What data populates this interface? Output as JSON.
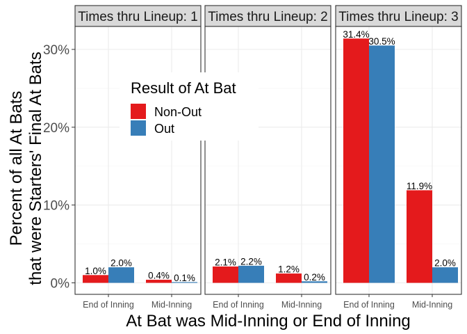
{
  "chart_data": {
    "type": "bar",
    "facet_label_prefix": "Times thru Lineup:",
    "facets": [
      {
        "label": "1",
        "categories": [
          "End of Inning",
          "Mid-Inning"
        ],
        "series": [
          {
            "name": "Non-Out",
            "values": [
              1.0,
              0.4
            ],
            "labels": [
              "1.0%",
              "0.4%"
            ]
          },
          {
            "name": "Out",
            "values": [
              2.0,
              0.1
            ],
            "labels": [
              "2.0%",
              "0.1%"
            ]
          }
        ]
      },
      {
        "label": "2",
        "categories": [
          "End of Inning",
          "Mid-Inning"
        ],
        "series": [
          {
            "name": "Non-Out",
            "values": [
              2.1,
              1.2
            ],
            "labels": [
              "2.1%",
              "1.2%"
            ]
          },
          {
            "name": "Out",
            "values": [
              2.2,
              0.2
            ],
            "labels": [
              "2.2%",
              "0.2%"
            ]
          }
        ]
      },
      {
        "label": "3",
        "categories": [
          "End of Inning",
          "Mid-Inning"
        ],
        "series": [
          {
            "name": "Non-Out",
            "values": [
              31.4,
              11.9
            ],
            "labels": [
              "31.4%",
              "11.9%"
            ]
          },
          {
            "name": "Out",
            "values": [
              30.5,
              2.0
            ],
            "labels": [
              "30.5%",
              "2.0%"
            ]
          }
        ]
      }
    ],
    "colors": {
      "Non-Out": "#E41A1C",
      "Out": "#377EB8"
    },
    "xlabel": "At Bat was Mid-Inning or End of Inning",
    "ylabel": [
      "Percent of all At Bats",
      "that were Starters' Final At Bats"
    ],
    "ylim": [
      -1.7,
      33.2
    ],
    "yticks": [
      0,
      10,
      20,
      30
    ],
    "ytick_labels": [
      "0%",
      "10%",
      "20%",
      "30%"
    ],
    "grid": true,
    "legend": {
      "title": "Result of At Bat",
      "entries": [
        "Non-Out",
        "Out"
      ],
      "placement": "inside-left"
    }
  }
}
